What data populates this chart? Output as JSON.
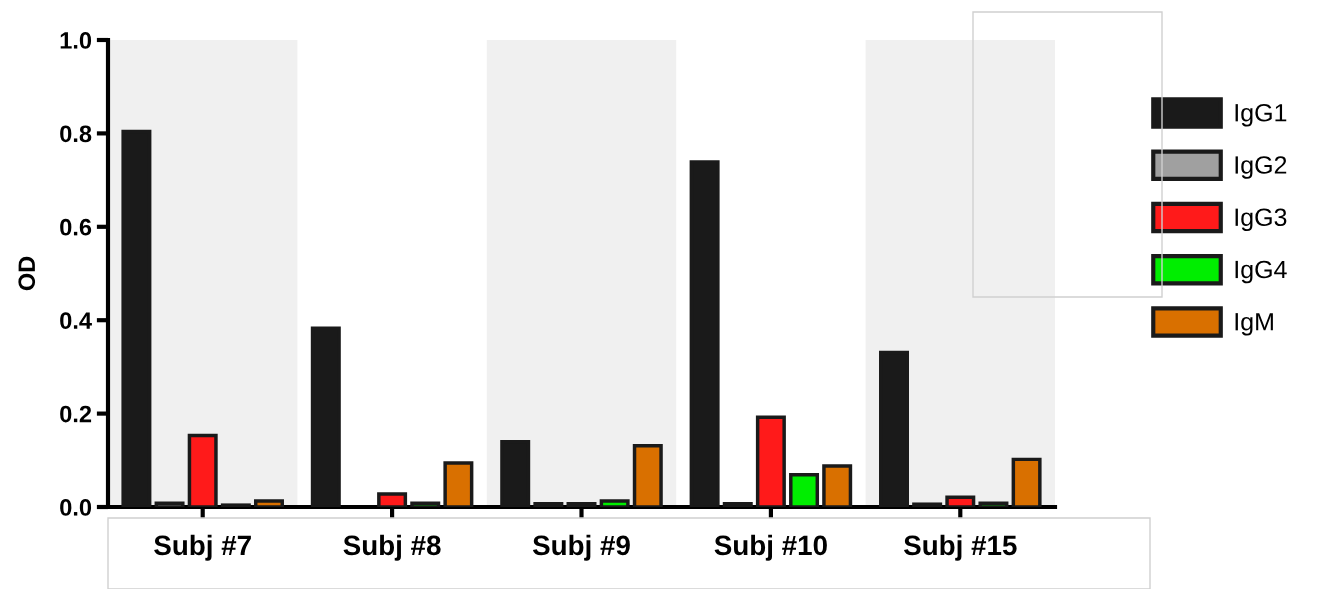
{
  "chart_data": {
    "type": "bar",
    "ylabel": "OD",
    "categories": [
      "Subj #7",
      "Subj #8",
      "Subj #9",
      "Subj #10",
      "Subj #15"
    ],
    "series": [
      {
        "name": "IgG1",
        "color": "#1a1a1a",
        "values": [
          0.804,
          0.383,
          0.14,
          0.739,
          0.331
        ]
      },
      {
        "name": "IgG2",
        "color": "#a0a0a0",
        "values": [
          0.008,
          null,
          0.007,
          0.007,
          0.006
        ]
      },
      {
        "name": "IgG3",
        "color": "#ff1a1a",
        "values": [
          0.153,
          0.028,
          0.007,
          0.192,
          0.021
        ]
      },
      {
        "name": "IgG4",
        "color": "#00ee00",
        "values": [
          0.004,
          0.008,
          0.013,
          0.069,
          0.008
        ]
      },
      {
        "name": "IgM",
        "color": "#d97000",
        "values": [
          0.013,
          0.094,
          0.131,
          0.088,
          0.102
        ]
      }
    ],
    "ylim": [
      0,
      1.0
    ],
    "yticks": [
      {
        "value": 0,
        "label": "0.0"
      },
      0.2,
      0.4,
      0.6,
      0.8,
      {
        "value": 1.0,
        "label": "1.0"
      }
    ],
    "bands": [
      {
        "axis": "x",
        "from": "Subj #7",
        "to": "Subj #7",
        "color": "#f0f0f0"
      },
      {
        "axis": "x",
        "from": "Subj #9",
        "to": "Subj #9",
        "color": "#f0f0f0"
      },
      {
        "axis": "x",
        "from": "Subj #15",
        "to": "Subj #15",
        "color": "#f0f0f0"
      }
    ],
    "grid": false,
    "legend": "right"
  }
}
